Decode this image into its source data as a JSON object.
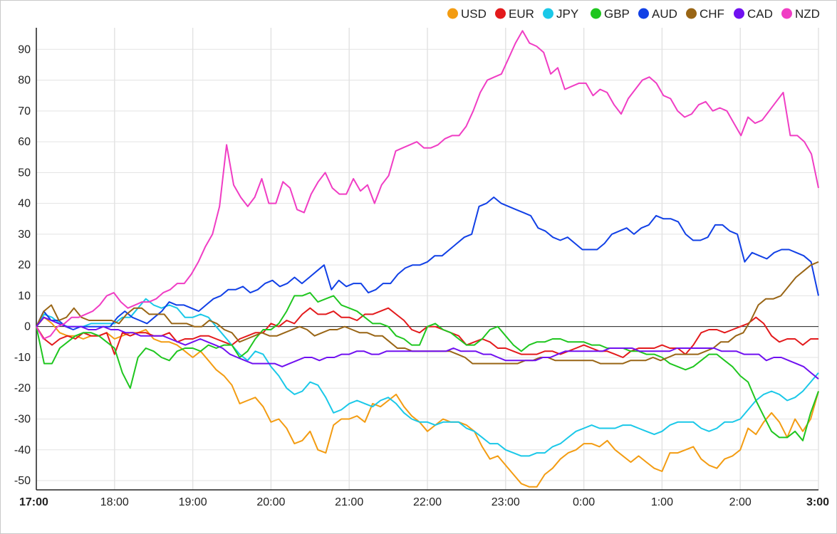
{
  "chart_data": {
    "type": "line",
    "x_ticks": [
      "17:00",
      "18:00",
      "19:00",
      "20:00",
      "21:00",
      "22:00",
      "23:00",
      "0:00",
      "1:00",
      "2:00",
      "3:00"
    ],
    "x_ticks_bold": [
      "17:00",
      "3:00"
    ],
    "x_range": [
      "17:00",
      "3:00"
    ],
    "ylim": [
      -53,
      97
    ],
    "y_ticks": [
      -50,
      -40,
      -30,
      -20,
      -10,
      0,
      10,
      20,
      30,
      40,
      50,
      60,
      70,
      80,
      90
    ],
    "grid": true,
    "legend_position": "top-right",
    "sample_interval_minutes": 5,
    "series": [
      {
        "name": "USD",
        "color": "#f39c12",
        "values": [
          0,
          3,
          1,
          -2,
          -3,
          -3,
          -4,
          -3,
          -3,
          -2,
          -4,
          -3,
          -2,
          -2,
          -1,
          -4,
          -5,
          -5,
          -6,
          -8,
          -10,
          -8,
          -11,
          -14,
          -16,
          -19,
          -25,
          -24,
          -23,
          -26,
          -31,
          -30,
          -33,
          -38,
          -37,
          -34,
          -40,
          -41,
          -32,
          -30,
          -30,
          -29,
          -31,
          -25,
          -26,
          -24,
          -22,
          -26,
          -29,
          -31,
          -34,
          -32,
          -30,
          -31,
          -31,
          -32,
          -34,
          -39,
          -43,
          -42,
          -45,
          -48,
          -51,
          -52,
          -52,
          -48,
          -46,
          -43,
          -41,
          -40,
          -38,
          -38,
          -39,
          -37,
          -40,
          -42,
          -44,
          -42,
          -44,
          -46,
          -47,
          -41,
          -41,
          -40,
          -39,
          -43,
          -45,
          -46,
          -43,
          -42,
          -40,
          -33,
          -35,
          -31,
          -28,
          -31,
          -36,
          -30,
          -34,
          -30,
          -21
        ]
      },
      {
        "name": "EUR",
        "color": "#e31a1c",
        "values": [
          0,
          -4,
          -6,
          -4,
          -3,
          -4,
          -2,
          -3,
          -3,
          -2,
          -9,
          -2,
          -3,
          -2,
          -2,
          -3,
          -3,
          -2,
          -5,
          -4,
          -4,
          -3,
          -3,
          -4,
          -5,
          -6,
          -4,
          -3,
          -2,
          -2,
          1,
          0,
          2,
          1,
          4,
          6,
          4,
          4,
          5,
          3,
          3,
          2,
          4,
          4,
          5,
          6,
          4,
          2,
          -1,
          -2,
          0,
          0,
          -1,
          -2,
          -3,
          -6,
          -5,
          -4,
          -5,
          -7,
          -7,
          -8,
          -9,
          -9,
          -9,
          -8,
          -8,
          -9,
          -8,
          -7,
          -6,
          -7,
          -8,
          -8,
          -9,
          -10,
          -8,
          -7,
          -7,
          -7,
          -6,
          -7,
          -7,
          -9,
          -6,
          -2,
          -1,
          -1,
          -2,
          -1,
          0,
          1,
          3,
          1,
          -3,
          -5,
          -4,
          -4,
          -6,
          -4,
          -4
        ]
      },
      {
        "name": "JPY",
        "color": "#1ac8e8",
        "values": [
          0,
          4,
          3,
          1,
          0,
          0,
          0,
          1,
          1,
          1,
          1,
          3,
          3,
          6,
          9,
          7,
          6,
          7,
          6,
          3,
          3,
          4,
          3,
          0,
          -3,
          -6,
          -9,
          -11,
          -8,
          -9,
          -13,
          -16,
          -20,
          -22,
          -21,
          -18,
          -19,
          -23,
          -28,
          -27,
          -25,
          -24,
          -25,
          -26,
          -24,
          -23,
          -25,
          -28,
          -30,
          -31,
          -31,
          -32,
          -31,
          -31,
          -31,
          -33,
          -34,
          -36,
          -38,
          -38,
          -40,
          -41,
          -42,
          -42,
          -41,
          -41,
          -39,
          -38,
          -36,
          -34,
          -33,
          -32,
          -33,
          -33,
          -33,
          -32,
          -32,
          -33,
          -34,
          -35,
          -34,
          -32,
          -31,
          -31,
          -31,
          -33,
          -34,
          -33,
          -31,
          -31,
          -30,
          -27,
          -24,
          -22,
          -21,
          -22,
          -24,
          -23,
          -21,
          -18,
          -15
        ]
      },
      {
        "name": "GBP",
        "color": "#1fc61f",
        "values": [
          0,
          -12,
          -12,
          -7,
          -5,
          -3,
          -2,
          -2,
          -3,
          -5,
          -7,
          -15,
          -20,
          -10,
          -7,
          -8,
          -10,
          -11,
          -8,
          -7,
          -7,
          -8,
          -6,
          -7,
          -6,
          -6,
          -10,
          -8,
          -4,
          -1,
          -1,
          1,
          5,
          10,
          10,
          11,
          8,
          9,
          10,
          7,
          6,
          5,
          3,
          1,
          1,
          0,
          -3,
          -4,
          -6,
          -6,
          0,
          1,
          -1,
          -2,
          -4,
          -6,
          -6,
          -4,
          -1,
          0,
          -3,
          -6,
          -8,
          -6,
          -5,
          -5,
          -4,
          -4,
          -5,
          -5,
          -5,
          -6,
          -6,
          -7,
          -7,
          -7,
          -8,
          -8,
          -9,
          -9,
          -10,
          -12,
          -13,
          -14,
          -13,
          -11,
          -9,
          -9,
          -11,
          -13,
          -16,
          -18,
          -24,
          -29,
          -34,
          -36,
          -36,
          -34,
          -37,
          -28,
          -21
        ]
      },
      {
        "name": "AUD",
        "color": "#1140e6",
        "values": [
          0,
          5,
          2,
          2,
          0,
          -1,
          0,
          0,
          0,
          0,
          0,
          3,
          5,
          3,
          2,
          1,
          3,
          5,
          8,
          7,
          7,
          6,
          5,
          7,
          9,
          10,
          12,
          12,
          13,
          11,
          12,
          14,
          15,
          13,
          14,
          16,
          14,
          16,
          18,
          20,
          12,
          15,
          13,
          14,
          14,
          11,
          12,
          14,
          14,
          17,
          19,
          20,
          20,
          21,
          23,
          23,
          25,
          27,
          29,
          30,
          39,
          40,
          42,
          40,
          39,
          38,
          37,
          36,
          32,
          31,
          29,
          28,
          29,
          27,
          25,
          25,
          25,
          27,
          30,
          31,
          32,
          30,
          32,
          33,
          36,
          35,
          35,
          34,
          30,
          28,
          28,
          29,
          33,
          33,
          31,
          30,
          21,
          24,
          23,
          22,
          24,
          25,
          25,
          24,
          23,
          21,
          10
        ]
      },
      {
        "name": "CHF",
        "color": "#996515",
        "values": [
          0,
          5,
          7,
          2,
          3,
          6,
          3,
          2,
          2,
          2,
          2,
          1,
          4,
          6,
          6,
          4,
          4,
          4,
          1,
          1,
          1,
          0,
          0,
          2,
          1,
          -1,
          -2,
          -5,
          -4,
          -3,
          -2,
          -3,
          -3,
          -2,
          -1,
          0,
          -1,
          -3,
          -2,
          -1,
          -1,
          0,
          -1,
          -2,
          -2,
          -3,
          -3,
          -5,
          -7,
          -7,
          -8,
          -8,
          -8,
          -8,
          -8,
          -8,
          -9,
          -10,
          -12,
          -12,
          -12,
          -12,
          -12,
          -12,
          -12,
          -11,
          -11,
          -10,
          -10,
          -11,
          -11,
          -11,
          -11,
          -11,
          -11,
          -12,
          -12,
          -12,
          -12,
          -11,
          -11,
          -11,
          -10,
          -11,
          -10,
          -9,
          -9,
          -9,
          -9,
          -8,
          -7,
          -5,
          -5,
          -3,
          -2,
          2,
          7,
          9,
          9,
          10,
          13,
          16,
          18,
          20,
          21
        ]
      },
      {
        "name": "CAD",
        "color": "#7010f0",
        "values": [
          0,
          3,
          2,
          1,
          0,
          0,
          0,
          -1,
          -1,
          0,
          -1,
          -1,
          -2,
          -2,
          -3,
          -3,
          -3,
          -3,
          -4,
          -5,
          -6,
          -5,
          -4,
          -5,
          -6,
          -7,
          -9,
          -10,
          -11,
          -12,
          -12,
          -12,
          -12,
          -13,
          -12,
          -11,
          -10,
          -10,
          -11,
          -10,
          -10,
          -9,
          -9,
          -8,
          -8,
          -9,
          -9,
          -8,
          -8,
          -8,
          -8,
          -8,
          -8,
          -8,
          -8,
          -8,
          -7,
          -8,
          -8,
          -8,
          -9,
          -9,
          -10,
          -11,
          -11,
          -11,
          -11,
          -11,
          -10,
          -10,
          -9,
          -8,
          -8,
          -8,
          -8,
          -8,
          -8,
          -7,
          -7,
          -7,
          -7,
          -8,
          -8,
          -8,
          -8,
          -8,
          -7,
          -7,
          -7,
          -7,
          -7,
          -7,
          -8,
          -8,
          -8,
          -9,
          -9,
          -9,
          -11,
          -10,
          -10,
          -11,
          -12,
          -13,
          -15,
          -17
        ]
      },
      {
        "name": "NZD",
        "color": "#f03dc4",
        "values": [
          0,
          -4,
          -3,
          0,
          1,
          3,
          3,
          4,
          5,
          7,
          10,
          11,
          8,
          6,
          7,
          8,
          8,
          9,
          11,
          12,
          14,
          14,
          17,
          21,
          26,
          30,
          39,
          59,
          46,
          42,
          39,
          42,
          48,
          40,
          40,
          47,
          45,
          38,
          37,
          43,
          47,
          50,
          45,
          43,
          43,
          48,
          44,
          46,
          40,
          46,
          49,
          57,
          58,
          59,
          60,
          58,
          58,
          59,
          61,
          62,
          62,
          65,
          70,
          76,
          80,
          81,
          82,
          87,
          92,
          96,
          92,
          91,
          89,
          82,
          84,
          77,
          78,
          79,
          79,
          75,
          77,
          76,
          72,
          69,
          74,
          77,
          80,
          81,
          79,
          75,
          74,
          70,
          68,
          69,
          72,
          73,
          70,
          71,
          70,
          66,
          62,
          68,
          66,
          67,
          70,
          73,
          76,
          62,
          62,
          60,
          56,
          45
        ]
      }
    ]
  }
}
